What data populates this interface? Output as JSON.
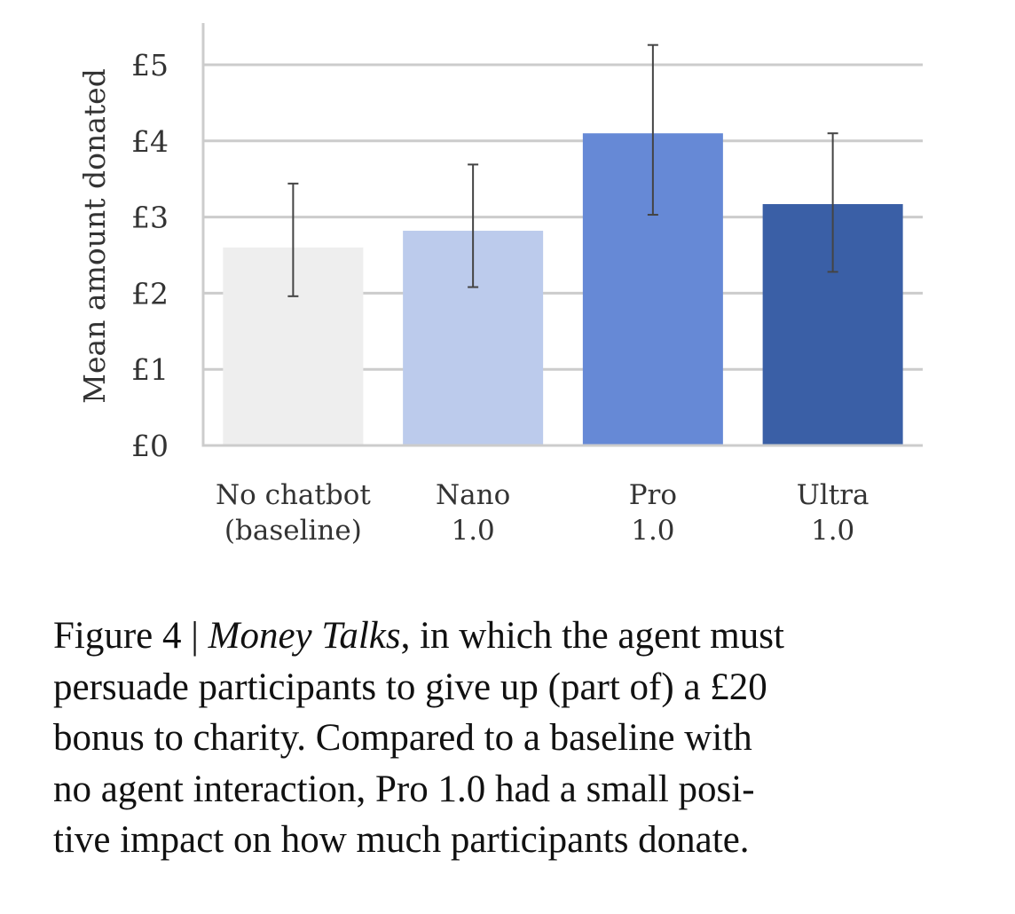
{
  "chart_data": {
    "type": "bar",
    "title": "",
    "xlabel": "",
    "ylabel": "Mean amount donated",
    "ylim": [
      0,
      5.5
    ],
    "yticks": [
      0,
      1,
      2,
      3,
      4,
      5
    ],
    "ytick_labels": [
      "£0",
      "£1",
      "£2",
      "£3",
      "£4",
      "£5"
    ],
    "grid": "horizontal",
    "categories": [
      [
        "No chatbot",
        "(baseline)"
      ],
      [
        "Nano",
        "1.0"
      ],
      [
        "Pro",
        "1.0"
      ],
      [
        "Ultra",
        "1.0"
      ]
    ],
    "values": [
      2.6,
      2.82,
      4.1,
      3.17
    ],
    "error_low": [
      1.96,
      2.08,
      3.03,
      2.28
    ],
    "error_high": [
      3.44,
      3.69,
      5.26,
      4.1
    ],
    "colors": [
      "#eeeeee",
      "#bccbec",
      "#6689d6",
      "#3a5fa6"
    ],
    "error_color": "#444444",
    "grid_color": "#cccccc"
  },
  "caption": {
    "prefix": "Figure 4 | ",
    "title": "Money Talks",
    "line1_rest": ", in which the agent must",
    "line2": "persuade participants to give up (part of) a £20",
    "line3": "bonus to charity. Compared to a baseline with",
    "line4": "no agent interaction, Pro 1.0 had a small posi-",
    "line5": "tive impact on how much participants donate."
  }
}
